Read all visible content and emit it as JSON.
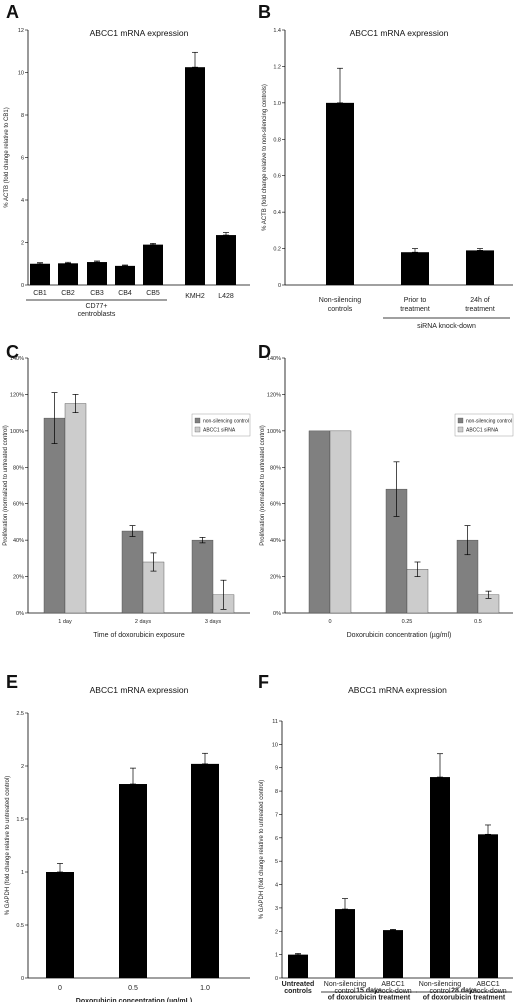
{
  "panels": [
    {
      "id": "A",
      "panel_label": "A",
      "chart_data": {
        "type": "bar",
        "title": "ABCC1 mRNA expression",
        "ylabel": "% ACTB (fold change relative to CB1)",
        "xlabel": "",
        "categories": [
          "CB1",
          "CB2",
          "CB3",
          "CB4",
          "CB5",
          "KMH2",
          "L428"
        ],
        "values": [
          1.0,
          1.02,
          1.08,
          0.9,
          1.9,
          10.25,
          2.35
        ],
        "errors": [
          0.05,
          0.05,
          0.05,
          0.04,
          0.06,
          0.7,
          0.12
        ],
        "ylim": [
          0,
          12
        ],
        "yticks": [
          "0",
          "2",
          "4",
          "6",
          "8",
          "10",
          "12"
        ],
        "colors": [
          "#000000"
        ],
        "group_labels": [
          {
            "text": "CD77+",
            "from": 0,
            "to": 4
          },
          {
            "text": "centroblasts",
            "from": 0,
            "to": 4
          }
        ]
      }
    },
    {
      "id": "B",
      "panel_label": "B",
      "chart_data": {
        "type": "bar",
        "title": "ABCC1 mRNA expression",
        "ylabel": "% ACTB (fold change relative to non-silencing controls)",
        "xlabel": "",
        "categories": [
          "Non-silencing\ncontrols",
          "Prior to\ntreatment",
          "24h of\ntreatment"
        ],
        "values": [
          1.0,
          0.18,
          0.19
        ],
        "errors": [
          0.19,
          0.02,
          0.01
        ],
        "ylim": [
          0,
          1.4
        ],
        "yticks": [
          "0",
          "0.2",
          "0.4",
          "0.6",
          "0.8",
          "1.0",
          "1.2",
          "1.4"
        ],
        "colors": [
          "#000000"
        ],
        "group_labels": [
          {
            "text": "siRNA knock-down",
            "from": 1,
            "to": 2
          }
        ]
      }
    },
    {
      "id": "C",
      "panel_label": "C",
      "chart_data": {
        "type": "bar",
        "title": "",
        "ylabel": "Proliferation (normalized to untreated control)",
        "xlabel": "Time of doxorubicin exposure",
        "categories": [
          "1 day",
          "2 days",
          "3 days"
        ],
        "series": [
          {
            "name": "non-silencing control",
            "values": [
              107,
              45,
              40
            ],
            "errors": [
              14,
              3,
              1.5
            ],
            "color": "#808080"
          },
          {
            "name": "ABCC1 siRNA",
            "values": [
              115,
              28,
              10
            ],
            "errors": [
              5,
              5,
              8
            ],
            "color": "#cccccc"
          }
        ],
        "ylim": [
          0,
          140
        ],
        "yticks": [
          "0%",
          "20%",
          "40%",
          "60%",
          "80%",
          "100%",
          "120%",
          "140%"
        ],
        "legend": "top-right"
      }
    },
    {
      "id": "D",
      "panel_label": "D",
      "chart_data": {
        "type": "bar",
        "title": "",
        "ylabel": "Proliferation (normalized to untreated control)",
        "xlabel": "Doxorubicin concentration (µg/ml)",
        "categories": [
          "0",
          "0.25",
          "0.5"
        ],
        "series": [
          {
            "name": "non-silencing control",
            "values": [
              100,
              68,
              40
            ],
            "errors": [
              0,
              15,
              8
            ],
            "color": "#808080"
          },
          {
            "name": "ABCC1 siRNA",
            "values": [
              100,
              24,
              10
            ],
            "errors": [
              0,
              4,
              2
            ],
            "color": "#cccccc"
          }
        ],
        "ylim": [
          0,
          140
        ],
        "yticks": [
          "0%",
          "20%",
          "40%",
          "60%",
          "80%",
          "100%",
          "120%",
          "140%"
        ],
        "legend": "top-right"
      }
    },
    {
      "id": "E",
      "panel_label": "E",
      "chart_data": {
        "type": "bar",
        "title": "ABCC1 mRNA expression",
        "ylabel": "% GAPDH (fold change relative to untreated control)",
        "xlabel": "Doxorubicin concentration (µg/mL)",
        "categories": [
          "0",
          "0.5",
          "1.0"
        ],
        "values": [
          1.0,
          1.83,
          2.02
        ],
        "errors": [
          0.08,
          0.15,
          0.1
        ],
        "ylim": [
          0,
          2.5
        ],
        "yticks": [
          "0",
          "0.5",
          "1",
          "1.5",
          "2",
          "2.5"
        ],
        "colors": [
          "#000000"
        ]
      }
    },
    {
      "id": "F",
      "panel_label": "F",
      "chart_data": {
        "type": "bar",
        "title": "ABCC1 mRNA expression",
        "ylabel": "% GAPDH (fold change relative to untreated control)",
        "xlabel": "",
        "categories": [
          "Untreated\ncontrols",
          "Non-silencing\ncontrol",
          "ABCC1\nknock-down",
          "Non-silencing\ncontrol",
          "ABCC1\nknock-down"
        ],
        "values": [
          1.0,
          2.95,
          2.05,
          8.6,
          6.15
        ],
        "errors": [
          0.05,
          0.45,
          0.03,
          1.0,
          0.4
        ],
        "ylim": [
          0,
          11
        ],
        "yticks": [
          "0",
          "1",
          "2",
          "3",
          "4",
          "5",
          "6",
          "7",
          "8",
          "9",
          "10",
          "11"
        ],
        "colors": [
          "#000000"
        ],
        "group_labels": [
          {
            "text": "15 days\nof doxorubicin treatment",
            "from": 1,
            "to": 2
          },
          {
            "text": "28 days\nof doxorubicin treatment",
            "from": 3,
            "to": 4
          }
        ]
      }
    }
  ]
}
